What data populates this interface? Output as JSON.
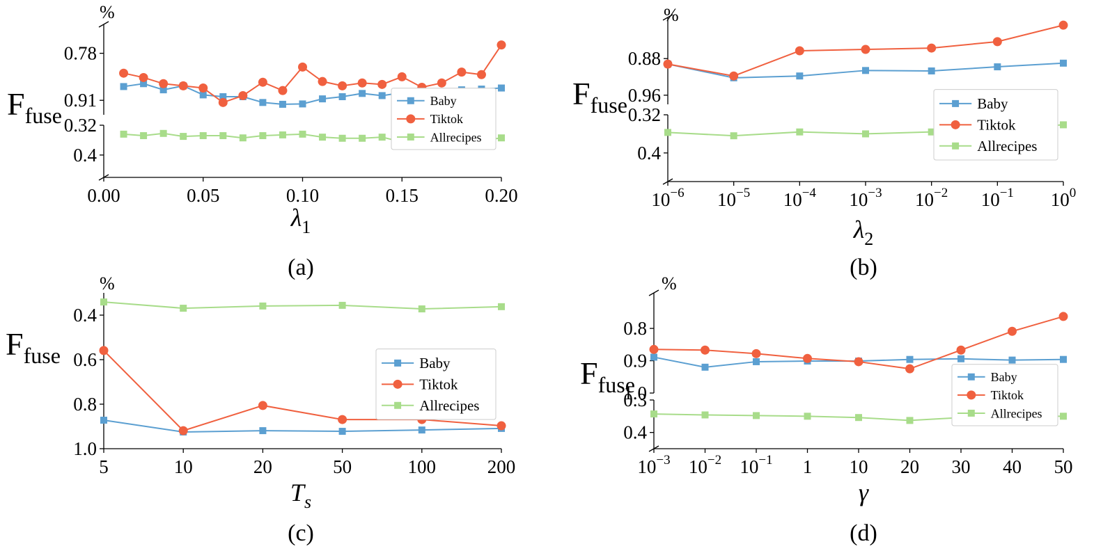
{
  "chart_data": [
    {
      "type": "line",
      "caption": "(a)",
      "unit": "%",
      "ylabel": "F",
      "ylabel_sub": "fuse",
      "xlabel": "λ",
      "xlabel_sub": "1",
      "x": [
        0.01,
        0.02,
        0.03,
        0.04,
        0.05,
        0.06,
        0.07,
        0.08,
        0.09,
        0.1,
        0.11,
        0.12,
        0.13,
        0.14,
        0.15,
        0.16,
        0.17,
        0.18,
        0.19,
        0.2
      ],
      "xlim": [
        0,
        0.2
      ],
      "xticks": [
        {
          "value": 0,
          "label": "0.00"
        },
        0.05,
        {
          "value": 0.1,
          "label": "0.10"
        },
        0.15,
        {
          "value": 0.2,
          "label": "0.20"
        }
      ],
      "y_segments": [
        {
          "ylim": [
            0.32,
            0.46
          ],
          "yticks": [
            0.32,
            0.4
          ]
        },
        {
          "ylim": [
            0.7,
            0.95
          ],
          "yticks": [
            0.78,
            0.91
          ]
        }
      ],
      "legend": "lower right",
      "series": [
        {
          "name": "Baby",
          "color": "#5b9fd1",
          "marker": "s",
          "values": [
            0.872,
            0.864,
            0.881,
            0.87,
            0.895,
            0.9,
            0.9,
            0.916,
            0.921,
            0.92,
            0.906,
            0.9,
            0.891,
            0.897,
            0.889,
            0.881,
            0.887,
            0.881,
            0.879,
            0.876
          ]
        },
        {
          "name": "Tiktok",
          "color": "#f0603f",
          "marker": "o",
          "values": [
            0.835,
            0.847,
            0.864,
            0.87,
            0.876,
            0.916,
            0.897,
            0.86,
            0.883,
            0.818,
            0.858,
            0.87,
            0.862,
            0.866,
            0.845,
            0.874,
            0.862,
            0.832,
            0.839,
            0.757
          ]
        },
        {
          "name": "Allrecipes",
          "color": "#a8dc8a",
          "marker": "s",
          "values": [
            0.344,
            0.348,
            0.342,
            0.35,
            0.348,
            0.348,
            0.354,
            0.348,
            0.346,
            0.344,
            0.352,
            0.355,
            0.355,
            0.352,
            0.365,
            0.355,
            0.357,
            0.352,
            0.361,
            0.354
          ]
        }
      ]
    },
    {
      "type": "line",
      "caption": "(b)",
      "unit": "%",
      "ylabel": "F",
      "ylabel_sub": "fuse",
      "xlabel": "λ",
      "xlabel_sub": "2",
      "x": [
        1e-06,
        1e-05,
        0.0001,
        0.001,
        0.01,
        0.1,
        1
      ],
      "xscale": "log",
      "xlim": [
        1e-06,
        1
      ],
      "xticks": [
        {
          "value": 1e-06,
          "label": "10",
          "exponent": "−6"
        },
        {
          "value": 1e-05,
          "label": "10",
          "exponent": "−5"
        },
        {
          "value": 0.0001,
          "label": "10",
          "exponent": "−4"
        },
        {
          "value": 0.001,
          "label": "10",
          "exponent": "−3"
        },
        {
          "value": 0.01,
          "label": "10",
          "exponent": "−2"
        },
        {
          "value": 0.1,
          "label": "10",
          "exponent": "−1"
        },
        {
          "value": 1,
          "label": "10",
          "exponent": "0"
        }
      ],
      "y_segments": [
        {
          "ylim": [
            0.32,
            0.46
          ],
          "yticks": [
            0.32,
            0.4
          ]
        },
        {
          "ylim": [
            0.79,
            0.98
          ],
          "yticks": [
            0.88,
            0.96
          ]
        }
      ],
      "legend": "lower right",
      "series": [
        {
          "name": "Baby",
          "color": "#5b9fd1",
          "marker": "s",
          "values": [
            0.892,
            0.922,
            0.918,
            0.906,
            0.907,
            0.898,
            0.89
          ]
        },
        {
          "name": "Tiktok",
          "color": "#f0603f",
          "marker": "o",
          "values": [
            0.892,
            0.918,
            0.863,
            0.86,
            0.857,
            0.843,
            0.807
          ]
        },
        {
          "name": "Allrecipes",
          "color": "#a8dc8a",
          "marker": "s",
          "values": [
            0.357,
            0.364,
            0.356,
            0.36,
            0.356,
            0.351,
            0.341
          ]
        }
      ]
    },
    {
      "type": "line",
      "caption": "(c)",
      "unit": "%",
      "ylabel": "F",
      "ylabel_sub": "fuse",
      "xlabel": "T",
      "xlabel_sub": "s",
      "categories": [
        "5",
        "10",
        "20",
        "50",
        "100",
        "200"
      ],
      "ylim": [
        0.3,
        1.0
      ],
      "yticks": [
        0.4,
        0.6,
        0.8,
        {
          "value": 1.0,
          "label": "1.0"
        }
      ],
      "legend": "lower right",
      "series": [
        {
          "name": "Baby",
          "color": "#5b9fd1",
          "marker": "s",
          "values": [
            0.872,
            0.925,
            0.919,
            0.922,
            0.916,
            0.909
          ]
        },
        {
          "name": "Tiktok",
          "color": "#f0603f",
          "marker": "o",
          "values": [
            0.559,
            0.919,
            0.806,
            0.869,
            0.869,
            0.897
          ]
        },
        {
          "name": "Allrecipes",
          "color": "#a8dc8a",
          "marker": "s",
          "values": [
            0.341,
            0.369,
            0.359,
            0.356,
            0.372,
            0.362
          ]
        }
      ]
    },
    {
      "type": "line",
      "caption": "(d)",
      "unit": "%",
      "ylabel": "F",
      "ylabel_sub": "fuse",
      "xlabel": "γ",
      "categories": [
        {
          "label": "10",
          "exponent": "−3"
        },
        {
          "label": "10",
          "exponent": "−2"
        },
        {
          "label": "10",
          "exponent": "−1"
        },
        "1",
        "10",
        "20",
        "30",
        "40",
        "50"
      ],
      "y_segments": [
        {
          "ylim": [
            0.3,
            0.45
          ],
          "yticks": [
            0.3,
            0.4
          ]
        },
        {
          "ylim": [
            0.69,
            1.0
          ],
          "yticks": [
            0.8,
            0.9,
            {
              "value": 1.0,
              "label": "1.0"
            }
          ]
        }
      ],
      "legend": "lower right",
      "series": [
        {
          "name": "Baby",
          "color": "#5b9fd1",
          "marker": "s",
          "values": [
            0.889,
            0.92,
            0.903,
            0.901,
            0.901,
            0.896,
            0.894,
            0.898,
            0.896
          ]
        },
        {
          "name": "Tiktok",
          "color": "#f0603f",
          "marker": "o",
          "values": [
            0.865,
            0.867,
            0.878,
            0.893,
            0.903,
            0.925,
            0.867,
            0.809,
            0.763
          ]
        },
        {
          "name": "Allrecipes",
          "color": "#a8dc8a",
          "marker": "s",
          "values": [
            0.343,
            0.346,
            0.348,
            0.35,
            0.354,
            0.363,
            0.354,
            0.35,
            0.35
          ]
        }
      ]
    }
  ]
}
